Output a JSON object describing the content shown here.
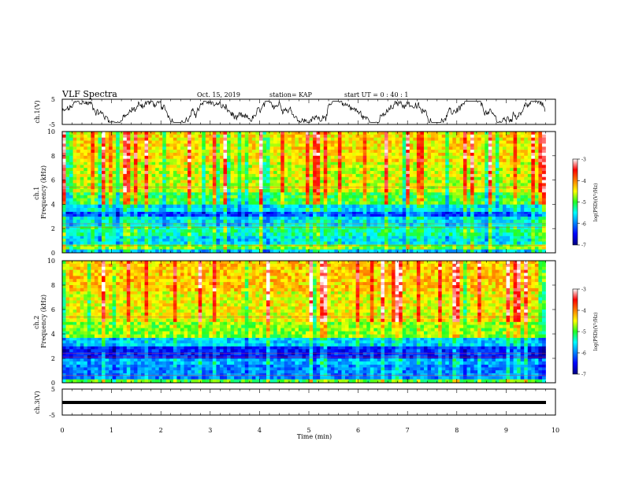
{
  "header": {
    "title": "VLF Spectra",
    "date": "Oct. 15, 2019",
    "station": "station= KAP",
    "start": "start  UT =  0 : 40 : 1"
  },
  "chart_data": [
    {
      "type": "line",
      "panel": "ch1-waveform",
      "ylabel": "ch.1(V)",
      "ylim": [
        -5,
        5
      ],
      "yticks": [
        "5",
        "-5"
      ],
      "xlim": [
        0,
        10
      ],
      "x_extent_min": [
        0,
        9.8
      ],
      "series": [
        {
          "values_approx": "oscillating trace, roughly -2.5 to 2.5 V"
        }
      ]
    },
    {
      "type": "heatmap",
      "panel": "ch1-spectrogram",
      "ylabel": "ch.1\nFrequency (kHz)",
      "ylim": [
        0,
        10
      ],
      "yticks": [
        "0",
        "2",
        "4",
        "6",
        "8",
        "10"
      ],
      "xlim": [
        0,
        10
      ],
      "x_extent_min": [
        0,
        9.8
      ],
      "colorbar": {
        "label": "log(PSD)(V²/Hz)",
        "range": [
          -7,
          -3
        ],
        "ticks": [
          "-3",
          "-4",
          "-5",
          "-6",
          "-7"
        ],
        "cmap": "jet"
      },
      "bands_kHz_log_psd": [
        {
          "f": [
            0,
            0.3
          ],
          "v": -5.7
        },
        {
          "f": [
            0.3,
            0.7
          ],
          "v": -4.9
        },
        {
          "f": [
            0.7,
            1.4
          ],
          "v": -5.6
        },
        {
          "f": [
            1.4,
            2.2
          ],
          "v": -5.3
        },
        {
          "f": [
            2.2,
            3.0
          ],
          "v": -5.6
        },
        {
          "f": [
            3.0,
            3.4
          ],
          "v": -6.2
        },
        {
          "f": [
            3.4,
            4.0
          ],
          "v": -5.6
        },
        {
          "f": [
            4.0,
            5.0
          ],
          "v": -5.0
        },
        {
          "f": [
            5.0,
            7.5
          ],
          "v": -4.6
        },
        {
          "f": [
            7.5,
            10.0
          ],
          "v": -4.4
        }
      ]
    },
    {
      "type": "heatmap",
      "panel": "ch2-spectrogram",
      "ylabel": "ch.2\nFrequency (kHz)",
      "ylim": [
        0,
        10
      ],
      "yticks": [
        "0",
        "2",
        "4",
        "6",
        "8",
        "10"
      ],
      "xlim": [
        0,
        10
      ],
      "x_extent_min": [
        0,
        9.8
      ],
      "colorbar": {
        "label": "log(PSD)(V²/Hz)",
        "range": [
          -7,
          -3
        ],
        "ticks": [
          "-3",
          "-4",
          "-5",
          "-6",
          "-7"
        ],
        "cmap": "jet"
      },
      "bands_kHz_log_psd": [
        {
          "f": [
            0,
            0.3
          ],
          "v": -5.0
        },
        {
          "f": [
            0.3,
            1.5
          ],
          "v": -6.0
        },
        {
          "f": [
            1.5,
            2.0
          ],
          "v": -5.8
        },
        {
          "f": [
            2.0,
            3.0
          ],
          "v": -6.4
        },
        {
          "f": [
            3.0,
            3.7
          ],
          "v": -5.7
        },
        {
          "f": [
            3.7,
            5.0
          ],
          "v": -4.8
        },
        {
          "f": [
            5.0,
            7.5
          ],
          "v": -4.5
        },
        {
          "f": [
            7.5,
            10.0
          ],
          "v": -4.3
        }
      ]
    },
    {
      "type": "line",
      "panel": "ch3-waveform",
      "ylabel": "ch.3(V)",
      "ylim": [
        -5,
        5
      ],
      "yticks": [
        "5",
        "-5"
      ],
      "xlim": [
        0,
        10
      ],
      "x_extent_min": [
        0,
        9.8
      ],
      "series": [
        {
          "values_approx": "flat thick line near -1 V"
        }
      ]
    }
  ],
  "xaxis": {
    "label": "Time (min)",
    "ticks": [
      "0",
      "1",
      "2",
      "3",
      "4",
      "5",
      "6",
      "7",
      "8",
      "9",
      "10"
    ]
  }
}
